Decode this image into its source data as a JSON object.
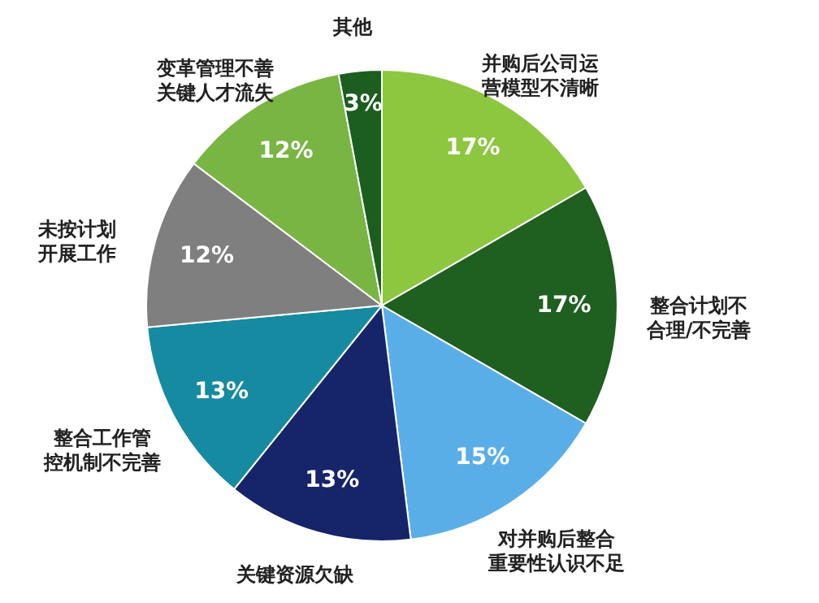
{
  "chart_data": {
    "type": "pie",
    "categories": [
      "并购后公司运营模型不清晰",
      "整合计划不合理/不完善",
      "对并购后整合重要性认识不足",
      "关键资源欠缺",
      "整合工作管控机制不完善",
      "未按计划开展工作",
      "变革管理不善关键人才流失",
      "其他"
    ],
    "values": [
      17,
      17,
      15,
      13,
      13,
      12,
      12,
      3
    ],
    "colors": [
      "#8dc63f",
      "#1f5f1f",
      "#5aaee8",
      "#16246a",
      "#168aa0",
      "#7f7f7f",
      "#78b543",
      "#1b5e20"
    ],
    "value_labels": [
      "17%",
      "17%",
      "15%",
      "13%",
      "13%",
      "12%",
      "12%",
      "3%"
    ]
  }
}
